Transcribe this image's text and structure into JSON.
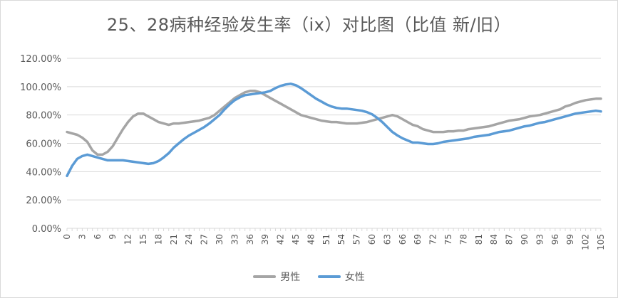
{
  "chart_data": {
    "type": "line",
    "title": "25、28病种经验发生率（ix）对比图（比值 新/旧）",
    "xlabel": "",
    "ylabel": "",
    "ylim": [
      0,
      1.2
    ],
    "ytick_labels": [
      "0.00%",
      "20.00%",
      "40.00%",
      "60.00%",
      "80.00%",
      "100.00%",
      "120.00%"
    ],
    "x_tick_step": 3,
    "xlim": [
      0,
      105
    ],
    "grid": true,
    "legend_position": "bottom",
    "series": [
      {
        "name": "男性",
        "color": "#a5a5a5",
        "points": [
          [
            0,
            0.68
          ],
          [
            1,
            0.67
          ],
          [
            2,
            0.66
          ],
          [
            3,
            0.64
          ],
          [
            4,
            0.61
          ],
          [
            5,
            0.55
          ],
          [
            6,
            0.52
          ],
          [
            7,
            0.52
          ],
          [
            8,
            0.54
          ],
          [
            9,
            0.58
          ],
          [
            10,
            0.64
          ],
          [
            11,
            0.7
          ],
          [
            12,
            0.75
          ],
          [
            13,
            0.79
          ],
          [
            14,
            0.81
          ],
          [
            15,
            0.81
          ],
          [
            16,
            0.79
          ],
          [
            17,
            0.77
          ],
          [
            18,
            0.75
          ],
          [
            19,
            0.74
          ],
          [
            20,
            0.73
          ],
          [
            21,
            0.74
          ],
          [
            22,
            0.74
          ],
          [
            23,
            0.745
          ],
          [
            24,
            0.75
          ],
          [
            25,
            0.755
          ],
          [
            26,
            0.76
          ],
          [
            27,
            0.77
          ],
          [
            28,
            0.78
          ],
          [
            29,
            0.8
          ],
          [
            30,
            0.83
          ],
          [
            31,
            0.86
          ],
          [
            32,
            0.89
          ],
          [
            33,
            0.92
          ],
          [
            34,
            0.94
          ],
          [
            35,
            0.96
          ],
          [
            36,
            0.97
          ],
          [
            37,
            0.97
          ],
          [
            38,
            0.96
          ],
          [
            39,
            0.94
          ],
          [
            40,
            0.92
          ],
          [
            41,
            0.9
          ],
          [
            42,
            0.88
          ],
          [
            43,
            0.86
          ],
          [
            44,
            0.84
          ],
          [
            45,
            0.82
          ],
          [
            46,
            0.8
          ],
          [
            47,
            0.79
          ],
          [
            48,
            0.78
          ],
          [
            49,
            0.77
          ],
          [
            50,
            0.76
          ],
          [
            51,
            0.755
          ],
          [
            52,
            0.75
          ],
          [
            53,
            0.75
          ],
          [
            54,
            0.745
          ],
          [
            55,
            0.74
          ],
          [
            56,
            0.74
          ],
          [
            57,
            0.74
          ],
          [
            58,
            0.745
          ],
          [
            59,
            0.75
          ],
          [
            60,
            0.76
          ],
          [
            61,
            0.77
          ],
          [
            62,
            0.78
          ],
          [
            63,
            0.79
          ],
          [
            64,
            0.8
          ],
          [
            65,
            0.79
          ],
          [
            66,
            0.77
          ],
          [
            67,
            0.75
          ],
          [
            68,
            0.73
          ],
          [
            69,
            0.72
          ],
          [
            70,
            0.7
          ],
          [
            71,
            0.69
          ],
          [
            72,
            0.68
          ],
          [
            73,
            0.68
          ],
          [
            74,
            0.68
          ],
          [
            75,
            0.685
          ],
          [
            76,
            0.685
          ],
          [
            77,
            0.69
          ],
          [
            78,
            0.69
          ],
          [
            79,
            0.7
          ],
          [
            80,
            0.705
          ],
          [
            81,
            0.71
          ],
          [
            82,
            0.715
          ],
          [
            83,
            0.72
          ],
          [
            84,
            0.73
          ],
          [
            85,
            0.74
          ],
          [
            86,
            0.75
          ],
          [
            87,
            0.76
          ],
          [
            88,
            0.765
          ],
          [
            89,
            0.77
          ],
          [
            90,
            0.78
          ],
          [
            91,
            0.79
          ],
          [
            92,
            0.795
          ],
          [
            93,
            0.8
          ],
          [
            94,
            0.81
          ],
          [
            95,
            0.82
          ],
          [
            96,
            0.83
          ],
          [
            97,
            0.84
          ],
          [
            98,
            0.86
          ],
          [
            99,
            0.87
          ],
          [
            100,
            0.885
          ],
          [
            101,
            0.895
          ],
          [
            102,
            0.905
          ],
          [
            103,
            0.91
          ],
          [
            104,
            0.915
          ],
          [
            105,
            0.915
          ]
        ]
      },
      {
        "name": "女性",
        "color": "#5b9bd5",
        "points": [
          [
            0,
            0.37
          ],
          [
            1,
            0.44
          ],
          [
            2,
            0.49
          ],
          [
            3,
            0.51
          ],
          [
            4,
            0.52
          ],
          [
            5,
            0.51
          ],
          [
            6,
            0.5
          ],
          [
            7,
            0.49
          ],
          [
            8,
            0.48
          ],
          [
            9,
            0.48
          ],
          [
            10,
            0.48
          ],
          [
            11,
            0.48
          ],
          [
            12,
            0.475
          ],
          [
            13,
            0.47
          ],
          [
            14,
            0.465
          ],
          [
            15,
            0.46
          ],
          [
            16,
            0.455
          ],
          [
            17,
            0.46
          ],
          [
            18,
            0.475
          ],
          [
            19,
            0.5
          ],
          [
            20,
            0.53
          ],
          [
            21,
            0.57
          ],
          [
            22,
            0.6
          ],
          [
            23,
            0.63
          ],
          [
            24,
            0.655
          ],
          [
            25,
            0.675
          ],
          [
            26,
            0.695
          ],
          [
            27,
            0.715
          ],
          [
            28,
            0.74
          ],
          [
            29,
            0.77
          ],
          [
            30,
            0.8
          ],
          [
            31,
            0.84
          ],
          [
            32,
            0.875
          ],
          [
            33,
            0.905
          ],
          [
            34,
            0.925
          ],
          [
            35,
            0.94
          ],
          [
            36,
            0.945
          ],
          [
            37,
            0.95
          ],
          [
            38,
            0.955
          ],
          [
            39,
            0.96
          ],
          [
            40,
            0.97
          ],
          [
            41,
            0.99
          ],
          [
            42,
            1.005
          ],
          [
            43,
            1.015
          ],
          [
            44,
            1.02
          ],
          [
            45,
            1.01
          ],
          [
            46,
            0.99
          ],
          [
            47,
            0.965
          ],
          [
            48,
            0.94
          ],
          [
            49,
            0.915
          ],
          [
            50,
            0.895
          ],
          [
            51,
            0.875
          ],
          [
            52,
            0.86
          ],
          [
            53,
            0.85
          ],
          [
            54,
            0.845
          ],
          [
            55,
            0.845
          ],
          [
            56,
            0.84
          ],
          [
            57,
            0.835
          ],
          [
            58,
            0.83
          ],
          [
            59,
            0.82
          ],
          [
            60,
            0.805
          ],
          [
            61,
            0.78
          ],
          [
            62,
            0.75
          ],
          [
            63,
            0.715
          ],
          [
            64,
            0.68
          ],
          [
            65,
            0.655
          ],
          [
            66,
            0.635
          ],
          [
            67,
            0.62
          ],
          [
            68,
            0.605
          ],
          [
            69,
            0.605
          ],
          [
            70,
            0.6
          ],
          [
            71,
            0.595
          ],
          [
            72,
            0.595
          ],
          [
            73,
            0.6
          ],
          [
            74,
            0.61
          ],
          [
            75,
            0.615
          ],
          [
            76,
            0.62
          ],
          [
            77,
            0.625
          ],
          [
            78,
            0.63
          ],
          [
            79,
            0.635
          ],
          [
            80,
            0.645
          ],
          [
            81,
            0.65
          ],
          [
            82,
            0.655
          ],
          [
            83,
            0.66
          ],
          [
            84,
            0.67
          ],
          [
            85,
            0.68
          ],
          [
            86,
            0.685
          ],
          [
            87,
            0.69
          ],
          [
            88,
            0.7
          ],
          [
            89,
            0.71
          ],
          [
            90,
            0.72
          ],
          [
            91,
            0.725
          ],
          [
            92,
            0.735
          ],
          [
            93,
            0.745
          ],
          [
            94,
            0.75
          ],
          [
            95,
            0.76
          ],
          [
            96,
            0.77
          ],
          [
            97,
            0.78
          ],
          [
            98,
            0.79
          ],
          [
            99,
            0.8
          ],
          [
            100,
            0.81
          ],
          [
            101,
            0.815
          ],
          [
            102,
            0.82
          ],
          [
            103,
            0.825
          ],
          [
            104,
            0.83
          ],
          [
            105,
            0.825
          ]
        ]
      }
    ]
  }
}
